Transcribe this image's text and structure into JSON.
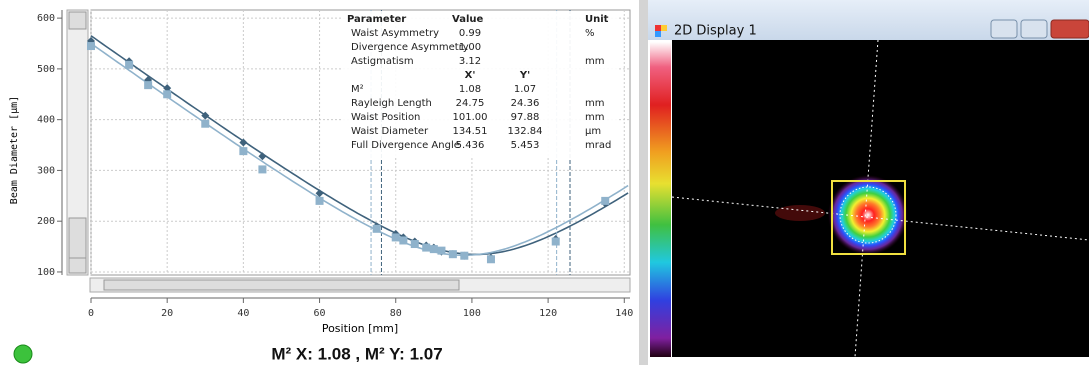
{
  "chart_data": {
    "type": "scatter",
    "y_label": "Beam Diameter [µm]",
    "x_label": "Position [mm]",
    "x": [
      0,
      10,
      15,
      20,
      30,
      40,
      45,
      60,
      75,
      80,
      82,
      85,
      88,
      90,
      92,
      95,
      98,
      105,
      122,
      135
    ],
    "series": [
      {
        "color": "#3f627c",
        "values": [
          555,
          515,
          478,
          462,
          408,
          355,
          328,
          255,
          190,
          175,
          168,
          160,
          152,
          148,
          140,
          135,
          132,
          128,
          165,
          235
        ]
      },
      {
        "color": "#8fb2cb",
        "values": [
          545,
          508,
          468,
          450,
          392,
          338,
          302,
          240,
          185,
          168,
          162,
          155,
          148,
          145,
          142,
          135,
          132,
          125,
          160,
          240
        ]
      }
    ],
    "xlim": [
      0,
      141.5
    ],
    "ylim": [
      94,
      616
    ],
    "xticks": [
      0,
      20,
      40,
      60,
      80,
      100,
      120,
      140
    ],
    "yticks": [
      100,
      200,
      300,
      400,
      500,
      600
    ],
    "grid": true
  },
  "table": {
    "header": [
      "Parameter",
      "Value",
      "Unit"
    ],
    "rows": [
      [
        "Waist Asymmetry",
        "0.99",
        "%"
      ],
      [
        "Divergence Asymmetry",
        "1.00"
      ],
      [
        "Astigmatism",
        "3.12",
        "mm"
      ]
    ],
    "subheader": [
      "X'",
      "Y'"
    ],
    "axis_rows": [
      [
        "M²",
        "1.08",
        "1.07"
      ],
      [
        "Rayleigh Length",
        "24.75",
        "24.36",
        "mm"
      ],
      [
        "Waist Position",
        "101.00",
        "97.88",
        "mm"
      ],
      [
        "Waist Diameter",
        "134.51",
        "132.84",
        "µm"
      ],
      [
        "Full Divergence Angle",
        "5.436",
        "5.453",
        "mrad"
      ]
    ]
  },
  "status": "M² X: 1.08 , M² Y: 1.07",
  "window": {
    "title": "2D Display 1"
  }
}
